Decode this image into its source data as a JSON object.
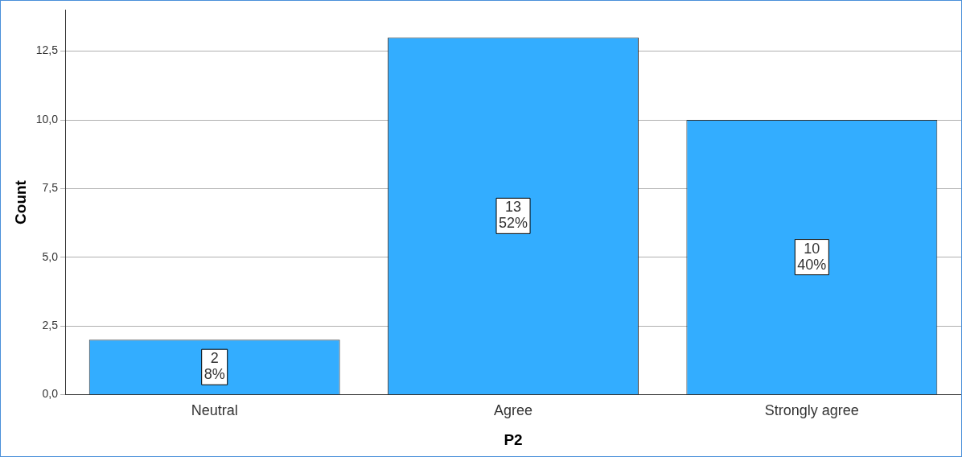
{
  "chart_data": {
    "type": "bar",
    "xlabel": "P2",
    "ylabel": "Count",
    "categories": [
      "Neutral",
      "Agree",
      "Strongly agree"
    ],
    "values": [
      2,
      13,
      10
    ],
    "color": "#33adff",
    "value_labels": [
      "2\n8%",
      "13\n52%",
      "10\n40%"
    ],
    "ylim": [
      0,
      14
    ],
    "yticks": [
      {
        "value": 0,
        "label": "0,0"
      },
      {
        "value": 2.5,
        "label": "2,5"
      },
      {
        "value": 5,
        "label": "5,0"
      },
      {
        "value": 7.5,
        "label": "7,5"
      },
      {
        "value": 10,
        "label": "10,0"
      },
      {
        "value": 12.5,
        "label": "12,5"
      }
    ],
    "grid": "y",
    "legend": false
  }
}
